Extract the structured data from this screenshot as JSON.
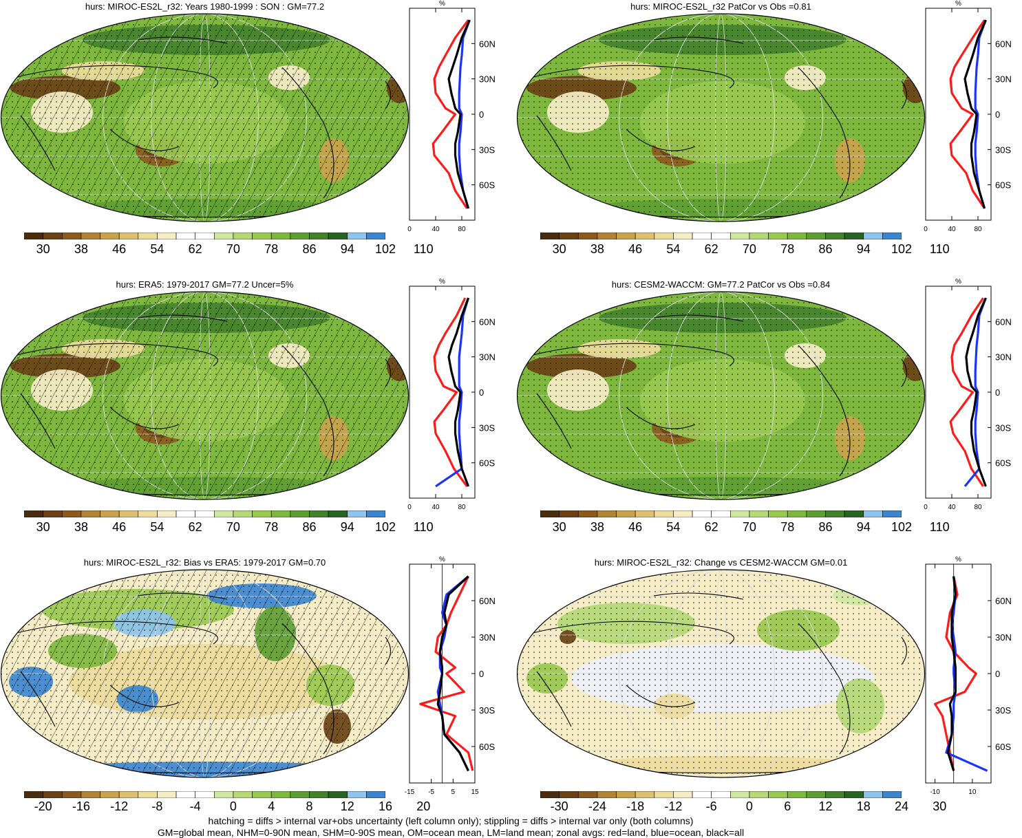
{
  "panels": [
    {
      "title": "hurs: MIROC-ES2L_r32: Years 1980-1999 : SON : GM=77.2",
      "kind": "clim",
      "hatch": true
    },
    {
      "title": "hurs: MIROC-ES2L_r32 PatCor vs Obs =0.81",
      "kind": "clim",
      "hatch": false
    },
    {
      "title": "hurs: ERA5: 1979-2017 GM=77.2 Uncer=5%",
      "kind": "clim",
      "hatch": true
    },
    {
      "title": "hurs: CESM2-WACCM: GM=77.2 PatCor vs Obs =0.84",
      "kind": "clim",
      "hatch": false
    },
    {
      "title": "hurs: MIROC-ES2L_r32: Bias vs ERA5: 1979-2017  GM=0.70",
      "kind": "bias",
      "hatch": true
    },
    {
      "title": "hurs: MIROC-ES2L_r32: Change vs CESM2-WACCM GM=0.01",
      "kind": "change",
      "hatch": false
    }
  ],
  "colorbars": {
    "clim": {
      "labels": [
        "30",
        "38",
        "46",
        "54",
        "62",
        "70",
        "78",
        "86",
        "94",
        "102",
        "110"
      ]
    },
    "bias": {
      "labels": [
        "-20",
        "-16",
        "-12",
        "-8",
        "-4",
        "0",
        "4",
        "8",
        "12",
        "16",
        "20"
      ]
    },
    "change": {
      "labels": [
        "-30",
        "-24",
        "-18",
        "-12",
        "-6",
        "0",
        "6",
        "12",
        "18",
        "24",
        "30"
      ]
    }
  },
  "palette": [
    "#4a2d0f",
    "#6b4216",
    "#8c5a1d",
    "#b08335",
    "#c9a24c",
    "#dcc070",
    "#eddb9a",
    "#f6edc6",
    "#ffffff",
    "#eef0f8",
    "#cfe8a0",
    "#b3d874",
    "#99c94f",
    "#7db83d",
    "#5e9e33",
    "#43822b",
    "#2a6424",
    "#8ec4ee",
    "#3c86d1"
  ],
  "profile_axes": {
    "unit": "%",
    "lat_labels": [
      "60N",
      "30N",
      "0",
      "30S",
      "60S"
    ],
    "clim_ticks": [
      "0",
      "40",
      "80"
    ],
    "bias_ticks": [
      "-15",
      "-5",
      "5",
      "15"
    ],
    "change_ticks": [
      "-10",
      "10"
    ]
  },
  "line_colors": {
    "land": "#ff1a1a",
    "ocean": "#1a33ff",
    "all": "#000000"
  },
  "footnotes": {
    "line1": "hatching = diffs > internal var+obs uncertainty (left column only); stippling = diffs > internal var only (both columns)",
    "line2": "GM=global mean, NHM=0-90N mean, SHM=0-90S mean, OM=ocean mean, LM=land mean; zonal avgs: red=land, blue=ocean, black=all"
  },
  "chart_data": [
    {
      "type": "line",
      "panel": "MIROC-ES2L_r32 SON",
      "xlim": [
        0,
        100
      ],
      "ylim": [
        -90,
        90
      ],
      "series": [
        {
          "name": "land",
          "x": [
            90,
            70,
            55,
            45,
            38,
            40,
            55,
            70,
            50,
            36,
            38,
            60,
            70,
            88
          ],
          "y": [
            80,
            65,
            50,
            40,
            30,
            18,
            5,
            0,
            -15,
            -25,
            -35,
            -50,
            -65,
            -80
          ]
        },
        {
          "name": "ocean",
          "x": [
            92,
            82,
            80,
            78,
            77,
            76,
            76,
            80,
            78,
            76,
            76,
            78,
            82,
            90
          ],
          "y": [
            80,
            65,
            50,
            40,
            30,
            18,
            5,
            0,
            -15,
            -25,
            -35,
            -50,
            -65,
            -80
          ]
        },
        {
          "name": "all",
          "x": [
            92,
            80,
            72,
            66,
            60,
            64,
            70,
            78,
            74,
            70,
            70,
            74,
            82,
            90
          ],
          "y": [
            80,
            65,
            50,
            40,
            30,
            18,
            5,
            0,
            -15,
            -25,
            -35,
            -50,
            -65,
            -80
          ]
        }
      ]
    },
    {
      "type": "line",
      "panel": "MIROC-ES2L_r32 PatCor",
      "xlim": [
        0,
        100
      ],
      "ylim": [
        -90,
        90
      ],
      "series": [
        {
          "name": "land",
          "x": [
            90,
            72,
            55,
            44,
            38,
            40,
            55,
            72,
            52,
            38,
            40,
            62,
            72,
            90
          ],
          "y": [
            80,
            65,
            50,
            40,
            30,
            18,
            5,
            0,
            -15,
            -25,
            -35,
            -50,
            -65,
            -80
          ]
        },
        {
          "name": "ocean",
          "x": [
            92,
            82,
            80,
            78,
            77,
            76,
            76,
            80,
            78,
            76,
            76,
            78,
            82,
            90
          ],
          "y": [
            80,
            65,
            50,
            40,
            30,
            18,
            5,
            0,
            -15,
            -25,
            -35,
            -50,
            -65,
            -80
          ]
        },
        {
          "name": "all",
          "x": [
            92,
            80,
            72,
            66,
            60,
            64,
            70,
            78,
            74,
            70,
            70,
            74,
            82,
            90
          ],
          "y": [
            80,
            65,
            50,
            40,
            30,
            18,
            5,
            0,
            -15,
            -25,
            -35,
            -50,
            -65,
            -80
          ]
        }
      ]
    },
    {
      "type": "line",
      "panel": "ERA5",
      "xlim": [
        0,
        100
      ],
      "ylim": [
        -90,
        90
      ],
      "series": [
        {
          "name": "land",
          "x": [
            85,
            72,
            55,
            45,
            38,
            40,
            52,
            72,
            52,
            38,
            40,
            55,
            68,
            88
          ],
          "y": [
            80,
            65,
            50,
            40,
            30,
            18,
            5,
            0,
            -15,
            -25,
            -35,
            -50,
            -65,
            -80
          ]
        },
        {
          "name": "ocean",
          "x": [
            90,
            82,
            80,
            78,
            76,
            76,
            76,
            80,
            78,
            76,
            76,
            78,
            80,
            40
          ],
          "y": [
            80,
            65,
            50,
            40,
            30,
            18,
            5,
            0,
            -15,
            -25,
            -35,
            -50,
            -65,
            -80
          ]
        },
        {
          "name": "all",
          "x": [
            90,
            80,
            72,
            65,
            60,
            64,
            70,
            78,
            74,
            70,
            70,
            74,
            80,
            90
          ],
          "y": [
            80,
            65,
            50,
            40,
            30,
            18,
            5,
            0,
            -15,
            -25,
            -35,
            -50,
            -65,
            -80
          ]
        }
      ]
    },
    {
      "type": "line",
      "panel": "CESM2-WACCM",
      "xlim": [
        0,
        100
      ],
      "ylim": [
        -90,
        90
      ],
      "series": [
        {
          "name": "land",
          "x": [
            88,
            70,
            55,
            44,
            40,
            42,
            55,
            72,
            52,
            38,
            42,
            60,
            70,
            88
          ],
          "y": [
            80,
            65,
            50,
            40,
            30,
            18,
            5,
            0,
            -15,
            -25,
            -35,
            -50,
            -65,
            -80
          ]
        },
        {
          "name": "ocean",
          "x": [
            92,
            82,
            80,
            78,
            77,
            76,
            76,
            80,
            78,
            76,
            76,
            78,
            82,
            60
          ],
          "y": [
            80,
            65,
            50,
            40,
            30,
            18,
            5,
            0,
            -15,
            -25,
            -35,
            -50,
            -65,
            -80
          ]
        },
        {
          "name": "all",
          "x": [
            92,
            80,
            72,
            66,
            62,
            64,
            70,
            78,
            74,
            70,
            70,
            74,
            82,
            92
          ],
          "y": [
            80,
            65,
            50,
            40,
            30,
            18,
            5,
            0,
            -15,
            -25,
            -35,
            -50,
            -65,
            -80
          ]
        }
      ]
    },
    {
      "type": "line",
      "panel": "Bias vs ERA5",
      "xlim": [
        -15,
        15
      ],
      "ylim": [
        -90,
        90
      ],
      "series": [
        {
          "name": "land",
          "x": [
            12,
            8,
            4,
            2,
            -2,
            -3,
            6,
            2,
            10,
            -10,
            6,
            2,
            12,
            14
          ],
          "y": [
            80,
            65,
            50,
            40,
            30,
            18,
            5,
            0,
            -15,
            -25,
            -35,
            -50,
            -65,
            -80
          ]
        },
        {
          "name": "ocean",
          "x": [
            12,
            2,
            0,
            2,
            1,
            -1,
            -1,
            0,
            -2,
            -1,
            0,
            1,
            8,
            12
          ],
          "y": [
            80,
            65,
            50,
            40,
            30,
            18,
            5,
            0,
            -15,
            -25,
            -35,
            -50,
            -65,
            -80
          ]
        },
        {
          "name": "all",
          "x": [
            12,
            3,
            1,
            2,
            0,
            -1,
            0,
            0,
            -1,
            -2,
            0,
            1,
            8,
            12
          ],
          "y": [
            80,
            65,
            50,
            40,
            30,
            18,
            5,
            0,
            -15,
            -25,
            -35,
            -50,
            -65,
            -80
          ]
        }
      ]
    },
    {
      "type": "line",
      "panel": "Change vs CESM2-WACCM",
      "xlim": [
        -15,
        20
      ],
      "ylim": [
        -90,
        90
      ],
      "series": [
        {
          "name": "land",
          "x": [
            0,
            2,
            -2,
            -3,
            -4,
            0,
            8,
            12,
            6,
            -10,
            -6,
            -4,
            -2,
            0
          ],
          "y": [
            80,
            65,
            50,
            40,
            30,
            18,
            5,
            0,
            -15,
            -25,
            -35,
            -50,
            -65,
            -80
          ]
        },
        {
          "name": "ocean",
          "x": [
            0,
            1,
            0,
            -1,
            0,
            1,
            0,
            0,
            1,
            0,
            0,
            -1,
            -4,
            18
          ],
          "y": [
            80,
            65,
            50,
            40,
            30,
            18,
            5,
            0,
            -15,
            -25,
            -35,
            -50,
            -65,
            -80
          ]
        },
        {
          "name": "all",
          "x": [
            0,
            1,
            -1,
            -1,
            -1,
            0,
            1,
            1,
            1,
            -2,
            -1,
            -1,
            -3,
            0
          ],
          "y": [
            80,
            65,
            50,
            40,
            30,
            18,
            5,
            0,
            -15,
            -25,
            -35,
            -50,
            -65,
            -80
          ]
        }
      ]
    }
  ]
}
